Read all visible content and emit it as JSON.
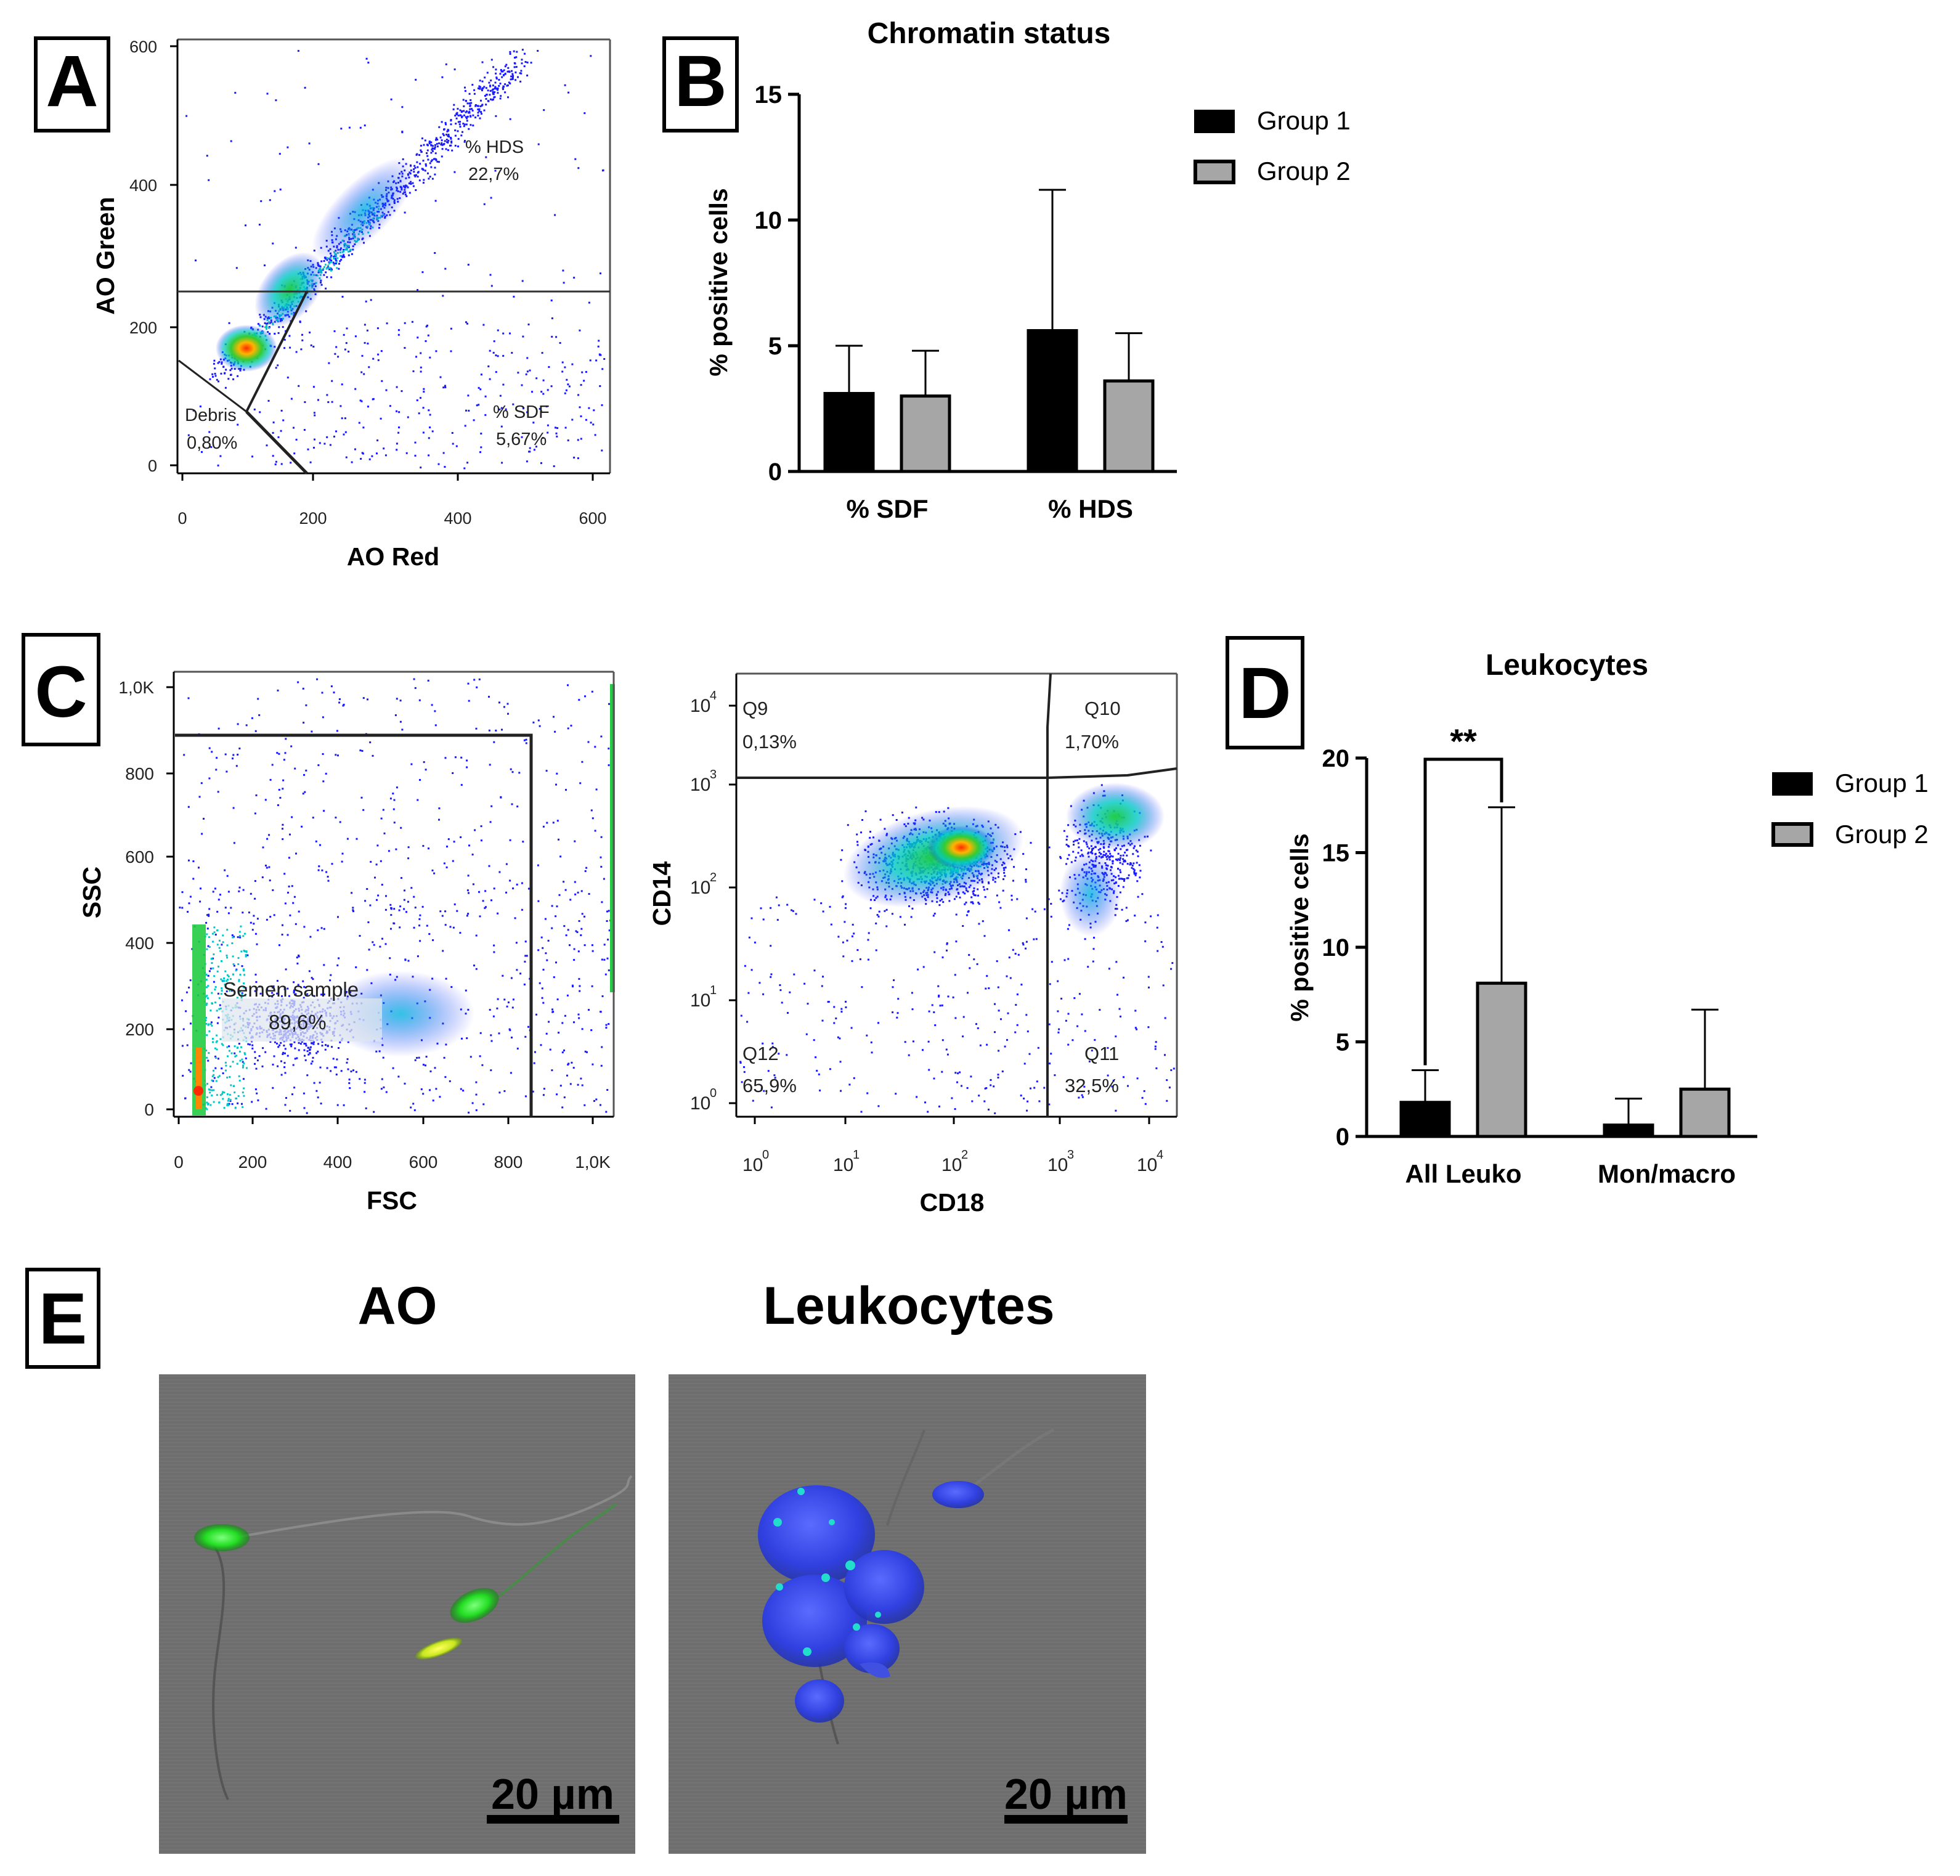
{
  "panel_labels": {
    "a": "A",
    "b": "B",
    "c": "C",
    "d": "D",
    "e": "E"
  },
  "colors": {
    "group1": "#000000",
    "group2": "#a6a6a6",
    "density_low": "#1a1aff",
    "density_mid": "#00c8c8",
    "density_high": "#ff2a00",
    "fluor_green": "#33ff33",
    "fluor_blue": "#3a3aff",
    "micro_bg": "#6e6e6e"
  },
  "panel_a": {
    "xlabel": "AO Red",
    "ylabel": "AO Green",
    "xticks": [
      "0",
      "200",
      "400",
      "600"
    ],
    "yticks": [
      "0",
      "200",
      "400",
      "600"
    ],
    "gates": {
      "hds": {
        "label": "% HDS",
        "value": "22,7%"
      },
      "sdf": {
        "label": "% SDF",
        "value": "5,67%"
      },
      "debris": {
        "label": "Debris",
        "value": "0,80%"
      }
    }
  },
  "panel_c_left": {
    "xlabel": "FSC",
    "ylabel": "SSC",
    "xticks": [
      "0",
      "200",
      "400",
      "600",
      "800",
      "1,0K"
    ],
    "yticks": [
      "0",
      "200",
      "400",
      "600",
      "800",
      "1,0K"
    ],
    "gate": {
      "label": "Semen sample",
      "value": "89,6%"
    }
  },
  "panel_c_right": {
    "xlabel": "CD18",
    "ylabel": "CD14",
    "xtick_base": "10",
    "xtick_exps": [
      "0",
      "1",
      "2",
      "3",
      "4"
    ],
    "ytick_base": "10",
    "ytick_exps": [
      "0",
      "1",
      "2",
      "3",
      "4"
    ],
    "quadrants": [
      {
        "id": "Q9",
        "value": "0,13%"
      },
      {
        "id": "Q10",
        "value": "1,70%"
      },
      {
        "id": "Q12",
        "value": "65,9%"
      },
      {
        "id": "Q11",
        "value": "32,5%"
      }
    ]
  },
  "panel_e": {
    "title_left": "AO",
    "title_right": "Leukocytes",
    "scale_left": "20 µm",
    "scale_right": "20 µm"
  },
  "chart_data": [
    {
      "type": "bar",
      "title": "Chromatin status",
      "ylabel": "% positive cells",
      "xlabel": "",
      "ylim": [
        0,
        15
      ],
      "yticks": [
        "0",
        "5",
        "10",
        "15"
      ],
      "categories": [
        "% SDF",
        "% HDS"
      ],
      "series": [
        {
          "name": "Group 1",
          "values": [
            3.1,
            5.6
          ],
          "errors": [
            1.9,
            5.6
          ]
        },
        {
          "name": "Group 2",
          "values": [
            3.0,
            3.6
          ],
          "errors": [
            1.8,
            1.9
          ]
        }
      ],
      "legend": "top-right"
    },
    {
      "type": "bar",
      "title": "Leukocytes",
      "ylabel": "% positive cells",
      "xlabel": "",
      "ylim": [
        0,
        20
      ],
      "yticks": [
        "0",
        "5",
        "10",
        "15",
        "20"
      ],
      "categories": [
        "All Leuko",
        "Mon/macro"
      ],
      "series": [
        {
          "name": "Group 1",
          "values": [
            1.8,
            0.6
          ],
          "errors": [
            1.7,
            1.4
          ]
        },
        {
          "name": "Group 2",
          "values": [
            8.1,
            2.5
          ],
          "errors": [
            9.3,
            4.2
          ]
        }
      ],
      "annotation": "**",
      "legend": "top-right"
    }
  ]
}
